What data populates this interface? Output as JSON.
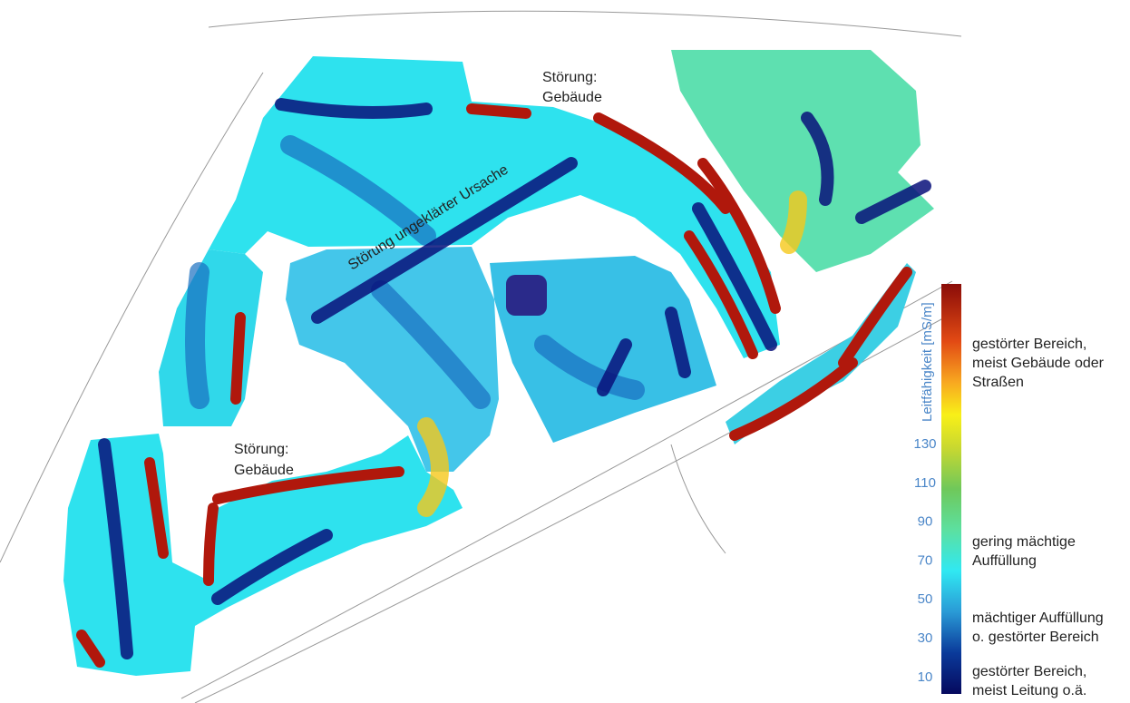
{
  "map": {
    "annotations": {
      "building_top": [
        "Störung:",
        "Gebäude"
      ],
      "building_left": [
        "Störung:",
        "Gebäude"
      ],
      "unknown_cause": "Störung ungeklärter Ursache"
    },
    "colorbar": {
      "title": "Leitfähigkeit [mS/m]",
      "ticks": [
        130,
        110,
        90,
        70,
        50,
        30,
        10
      ]
    },
    "legend": [
      [
        "gestörter Bereich,",
        "meist Gebäude oder",
        "Straßen"
      ],
      [
        "gering mächtige",
        "Auffüllung"
      ],
      [
        "mächtiger Auffüllung",
        "o. gestörter Bereich"
      ],
      [
        "gestörter Bereich,",
        "meist Leitung o.ä."
      ]
    ]
  }
}
